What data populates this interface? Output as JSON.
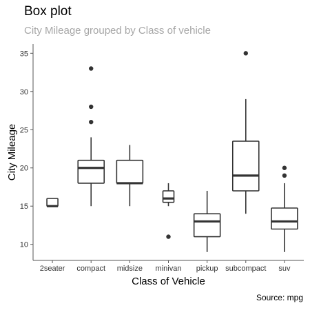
{
  "header": {
    "title": "Box plot",
    "subtitle": "City Mileage grouped by Class of vehicle",
    "caption": "Source: mpg"
  },
  "chart_data": {
    "type": "box",
    "title": "Box plot",
    "subtitle": "City Mileage grouped by Class of vehicle",
    "xlabel": "Class of Vehicle",
    "ylabel": "City Mileage",
    "ylim": [
      7.9,
      36.2
    ],
    "yticks": [
      10,
      15,
      20,
      25,
      30,
      35
    ],
    "categories": [
      "2seater",
      "compact",
      "midsize",
      "minivan",
      "pickup",
      "subcompact",
      "suv"
    ],
    "boxes": [
      {
        "category": "2seater",
        "min": 15,
        "q1": 15,
        "median": 15,
        "q3": 16,
        "max": 16,
        "outliers": []
      },
      {
        "category": "compact",
        "min": 15,
        "q1": 18,
        "median": 20,
        "q3": 21,
        "max": 24,
        "outliers": [
          26,
          28,
          33
        ]
      },
      {
        "category": "midsize",
        "min": 15,
        "q1": 18,
        "median": 18,
        "q3": 21,
        "max": 23,
        "outliers": []
      },
      {
        "category": "minivan",
        "min": 15,
        "q1": 15.5,
        "median": 16,
        "q3": 17,
        "max": 18,
        "outliers": [
          11
        ]
      },
      {
        "category": "pickup",
        "min": 9,
        "q1": 11,
        "median": 13,
        "q3": 14,
        "max": 17,
        "outliers": []
      },
      {
        "category": "subcompact",
        "min": 14,
        "q1": 17,
        "median": 19,
        "q3": 23.5,
        "max": 29,
        "outliers": [
          35
        ]
      },
      {
        "category": "suv",
        "min": 9,
        "q1": 12,
        "median": 13,
        "q3": 14.75,
        "max": 18,
        "outliers": [
          19,
          20
        ]
      }
    ],
    "grid": false,
    "colors": {
      "box": "#333333",
      "axis": "#555555"
    },
    "caption": "Source: mpg"
  }
}
